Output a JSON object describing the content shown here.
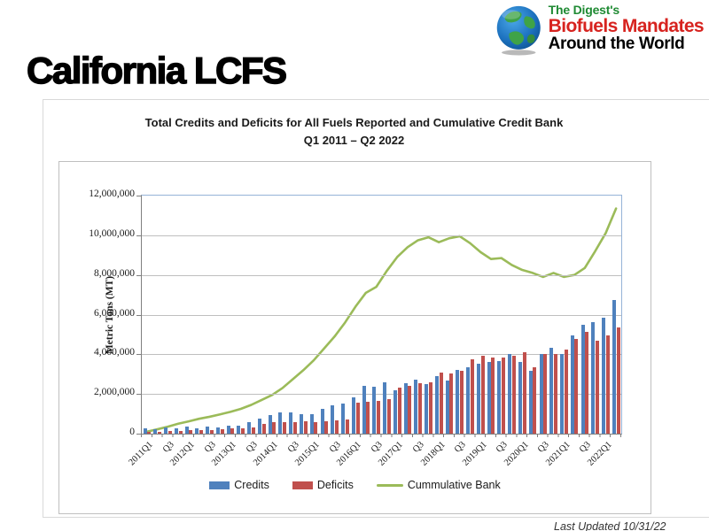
{
  "slide": {
    "title": "California LCFS"
  },
  "logo": {
    "line1": "The Digest's",
    "line2": "Biofuels Mandates",
    "line3": "Around the World",
    "colors": {
      "line1": "#1f8a33",
      "line2": "#d7231f",
      "line3": "#000000"
    }
  },
  "footer": {
    "last_updated": "Last Updated 10/31/22"
  },
  "chart_data": {
    "type": "bar+line",
    "title_line1": "Total Credits and Deficits for All Fuels Reported and Cumulative Credit Bank",
    "title_line2": "Q1 2011 – Q2 2022",
    "ylabel": "Metric Tons (MT)",
    "ylim": [
      0,
      12000000
    ],
    "ytick_step": 2000000,
    "yticks_labels": [
      "0",
      "2,000,000",
      "4,000,000",
      "6,000,000",
      "8,000,000",
      "10,000,000",
      "12,000,000"
    ],
    "grid": "horizontal",
    "legend_position": "bottom",
    "categories": [
      "2011Q1",
      "2011Q2",
      "2011Q3",
      "2011Q4",
      "2012Q1",
      "2012Q2",
      "2012Q3",
      "2012Q4",
      "2013Q1",
      "2013Q2",
      "2013Q3",
      "2013Q4",
      "2014Q1",
      "2014Q2",
      "2014Q3",
      "2014Q4",
      "2015Q1",
      "2015Q2",
      "2015Q3",
      "2015Q4",
      "2016Q1",
      "2016Q2",
      "2016Q3",
      "2016Q4",
      "2017Q1",
      "2017Q2",
      "2017Q3",
      "2017Q4",
      "2018Q1",
      "2018Q2",
      "2018Q3",
      "2018Q4",
      "2019Q1",
      "2019Q2",
      "2019Q3",
      "2019Q4",
      "2020Q1",
      "2020Q2",
      "2020Q3",
      "2020Q4",
      "2021Q1",
      "2021Q2",
      "2021Q3",
      "2021Q4",
      "2022Q1",
      "2022Q2"
    ],
    "xtick_labels": [
      "2011Q1",
      "",
      "Q3",
      "",
      "2012Q1",
      "",
      "Q3",
      "",
      "2013Q1",
      "",
      "Q3",
      "",
      "2014Q1",
      "",
      "Q3",
      "",
      "2015Q1",
      "",
      "Q3",
      "",
      "2016Q1",
      "",
      "Q3",
      "",
      "2017Q1",
      "",
      "Q3",
      "",
      "2018Q1",
      "",
      "Q3",
      "",
      "2019Q1",
      "",
      "Q3",
      "",
      "2020Q1",
      "",
      "Q3",
      "",
      "2021Q1",
      "",
      "Q3",
      "",
      "2022Q1",
      ""
    ],
    "series": [
      {
        "name": "Credits",
        "type": "bar",
        "color": "#4F81BD",
        "values": [
          250000,
          210000,
          300000,
          260000,
          350000,
          290000,
          360000,
          320000,
          420000,
          380000,
          600000,
          780000,
          950000,
          1080000,
          1050000,
          1000000,
          1000000,
          1260000,
          1450000,
          1500000,
          1850000,
          2400000,
          2360000,
          2590000,
          2170000,
          2560000,
          2710000,
          2510000,
          2920000,
          2670000,
          3230000,
          3350000,
          3530000,
          3620000,
          3680000,
          4030000,
          3620000,
          3170000,
          4030000,
          4330000,
          4000000,
          4940000,
          5500000,
          5600000,
          5850000,
          6750000
        ]
      },
      {
        "name": "Deficits",
        "type": "bar",
        "color": "#C0504D",
        "values": [
          100000,
          100000,
          130000,
          150000,
          170000,
          190000,
          200000,
          210000,
          250000,
          260000,
          310000,
          500000,
          570000,
          590000,
          590000,
          620000,
          580000,
          620000,
          670000,
          700000,
          1550000,
          1620000,
          1650000,
          1760000,
          2320000,
          2400000,
          2560000,
          2590000,
          3080000,
          3020000,
          3170000,
          3730000,
          3920000,
          3830000,
          3830000,
          3920000,
          4110000,
          3350000,
          4000000,
          4000000,
          4230000,
          4790000,
          5150000,
          4670000,
          4950000,
          5350000
        ]
      },
      {
        "name": "Cummulative Bank",
        "type": "line",
        "color": "#9BBB59",
        "values": [
          100000,
          220000,
          350000,
          500000,
          620000,
          750000,
          850000,
          970000,
          1100000,
          1250000,
          1450000,
          1700000,
          1950000,
          2300000,
          2750000,
          3200000,
          3700000,
          4300000,
          4900000,
          5600000,
          6400000,
          7100000,
          7400000,
          8200000,
          8900000,
          9400000,
          9750000,
          9900000,
          9650000,
          9850000,
          9950000,
          9600000,
          9150000,
          8800000,
          8850000,
          8500000,
          8250000,
          8100000,
          7900000,
          8100000,
          7900000,
          8000000,
          8350000,
          9200000,
          10100000,
          11350000
        ]
      }
    ]
  }
}
